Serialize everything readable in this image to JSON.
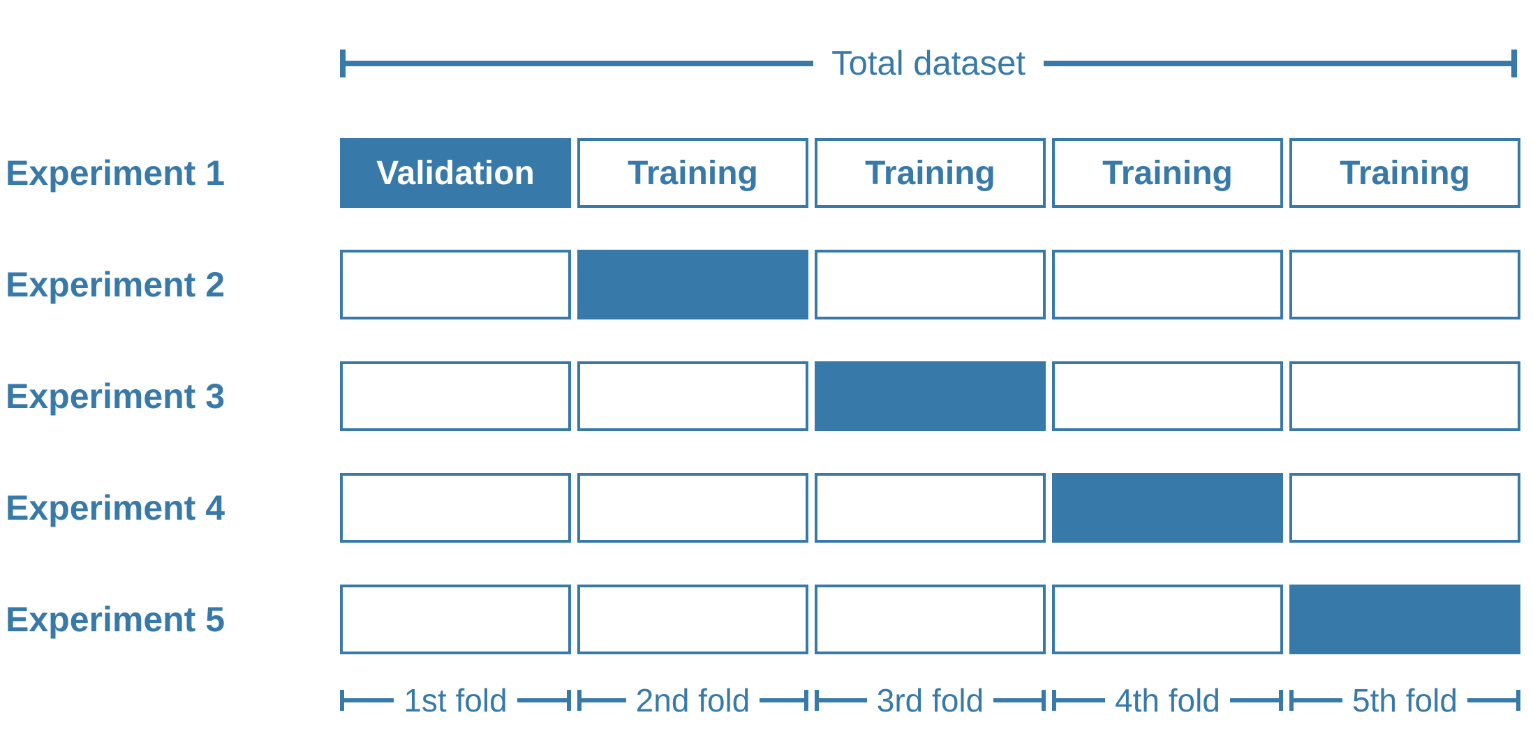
{
  "diagram": {
    "title": "Total dataset",
    "accent_color": "#3779a8",
    "experiments": [
      {
        "label": "Experiment 1",
        "cells": [
          {
            "text": "Validation",
            "filled": true
          },
          {
            "text": "Training",
            "filled": false
          },
          {
            "text": "Training",
            "filled": false
          },
          {
            "text": "Training",
            "filled": false
          },
          {
            "text": "Training",
            "filled": false
          }
        ]
      },
      {
        "label": "Experiment 2",
        "cells": [
          {
            "text": "",
            "filled": false
          },
          {
            "text": "",
            "filled": true
          },
          {
            "text": "",
            "filled": false
          },
          {
            "text": "",
            "filled": false
          },
          {
            "text": "",
            "filled": false
          }
        ]
      },
      {
        "label": "Experiment 3",
        "cells": [
          {
            "text": "",
            "filled": false
          },
          {
            "text": "",
            "filled": false
          },
          {
            "text": "",
            "filled": true
          },
          {
            "text": "",
            "filled": false
          },
          {
            "text": "",
            "filled": false
          }
        ]
      },
      {
        "label": "Experiment 4",
        "cells": [
          {
            "text": "",
            "filled": false
          },
          {
            "text": "",
            "filled": false
          },
          {
            "text": "",
            "filled": false
          },
          {
            "text": "",
            "filled": true
          },
          {
            "text": "",
            "filled": false
          }
        ]
      },
      {
        "label": "Experiment 5",
        "cells": [
          {
            "text": "",
            "filled": false
          },
          {
            "text": "",
            "filled": false
          },
          {
            "text": "",
            "filled": false
          },
          {
            "text": "",
            "filled": false
          },
          {
            "text": "",
            "filled": true
          }
        ]
      }
    ],
    "folds": [
      "1st fold",
      "2nd fold",
      "3rd fold",
      "4th fold",
      "5th fold"
    ]
  }
}
